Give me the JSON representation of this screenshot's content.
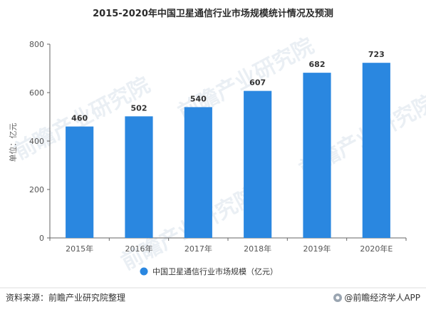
{
  "chart_data": {
    "type": "bar",
    "title": "2015-2020年中国卫星通信行业市场规模统计情况及预测",
    "categories": [
      "2015年",
      "2016年",
      "2017年",
      "2018年",
      "2019年",
      "2020年E"
    ],
    "series": [
      {
        "name": "中国卫星通信行业市场规模（亿元）",
        "values": [
          460,
          502,
          540,
          607,
          682,
          723
        ]
      }
    ],
    "ylabel": "单位：亿元",
    "ylim": [
      0,
      800
    ],
    "yticks": [
      0,
      200,
      400,
      600,
      800
    ],
    "grid": false,
    "legend": "bottom",
    "bar_color": "#2a87e0"
  },
  "footer": {
    "source": "资料来源：前瞻产业研究院整理",
    "brand": "@前瞻经济学人APP"
  },
  "watermark": {
    "text": "前瞻产业研究院"
  }
}
